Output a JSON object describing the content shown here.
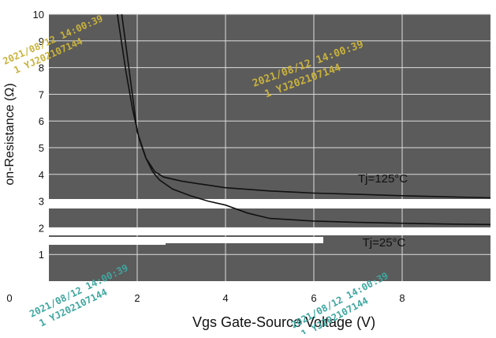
{
  "chart_data": {
    "type": "line",
    "xlabel": "Vgs Gate-Source Voltage (V)",
    "ylabel": "on-Resistance (Ω)",
    "xlim": [
      0,
      10
    ],
    "ylim": [
      0,
      10
    ],
    "x_ticks": [
      "0",
      "2",
      "4",
      "6",
      "8"
    ],
    "y_ticks": [
      "1",
      "2",
      "3",
      "4",
      "5",
      "6",
      "7",
      "8",
      "9",
      "10"
    ],
    "grid": true,
    "series": [
      {
        "name": "Tj=125°C",
        "x": [
          1.65,
          1.85,
          2.0,
          2.2,
          2.4,
          2.6,
          3.0,
          3.5,
          4.0,
          5.0,
          6.0,
          7.0,
          8.0,
          9.0,
          10.0
        ],
        "y": [
          10.0,
          7.5,
          5.6,
          4.6,
          4.1,
          3.9,
          3.75,
          3.62,
          3.5,
          3.38,
          3.3,
          3.25,
          3.2,
          3.16,
          3.12
        ]
      },
      {
        "name": "Tj=25°C",
        "x": [
          1.55,
          1.75,
          1.9,
          2.05,
          2.2,
          2.35,
          2.5,
          2.8,
          3.2,
          3.6,
          4.0,
          4.5,
          5.0,
          6.0,
          7.0,
          8.0,
          9.0,
          10.0
        ],
        "y": [
          10.0,
          7.8,
          6.4,
          5.3,
          4.6,
          4.1,
          3.8,
          3.45,
          3.2,
          3.0,
          2.85,
          2.55,
          2.35,
          2.25,
          2.2,
          2.17,
          2.14,
          2.12
        ]
      }
    ],
    "annotations": [
      {
        "text": "Tj=125°C",
        "x": 7.0,
        "y": 3.7
      },
      {
        "text": "Tj=25°C",
        "x": 7.1,
        "y": 1.3
      }
    ],
    "watermarks": [
      "2021/08/12 14:00:39",
      "1 YJ202107144"
    ],
    "colors": {
      "plot_bg": "#5b5b5b",
      "grid": "#dcdcdc",
      "curve": "#111111",
      "label_dark": "#111111",
      "watermark_gold": "#c9b23c",
      "watermark_teal": "#3fa7a0"
    }
  }
}
